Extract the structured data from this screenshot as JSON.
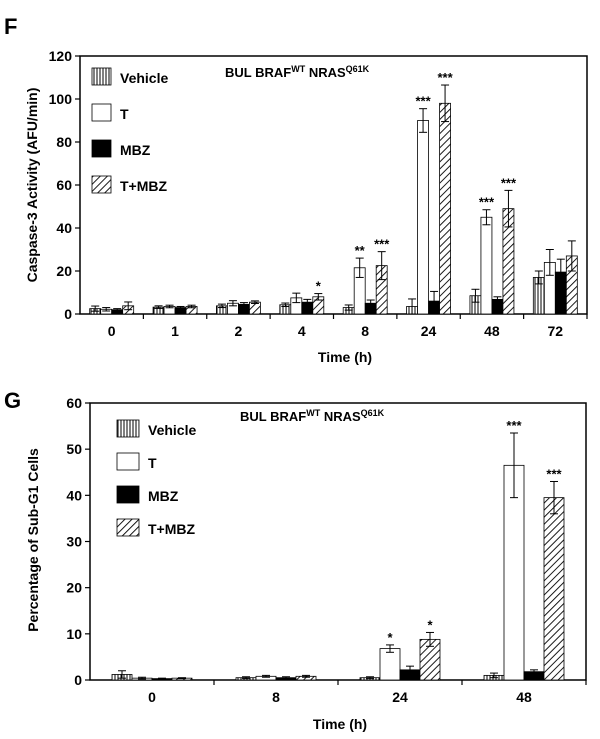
{
  "chart_data": [
    {
      "type": "bar",
      "panel": "F",
      "title": "BUL   BRAF",
      "title_sup1": "WT",
      "title_mid": " NRAS",
      "title_sup2": "Q61K",
      "xlabel": "Time (h)",
      "ylabel": "Caspase-3 Activity (AFU/min)",
      "ylim": [
        0,
        120
      ],
      "yticks": [
        "0",
        "20",
        "40",
        "60",
        "80",
        "100",
        "120"
      ],
      "categories": [
        "0",
        "1",
        "2",
        "4",
        "8",
        "24",
        "48",
        "72"
      ],
      "series": [
        {
          "name": "Vehicle",
          "pattern": "vertical",
          "values": [
            2.5,
            3.2,
            3.8,
            4.3,
            3.0,
            3.5,
            8.5,
            17
          ],
          "errors": [
            1.2,
            0.6,
            0.8,
            0.8,
            1.2,
            3.5,
            3.0,
            3.0
          ],
          "sig": [
            "",
            "",
            "",
            "",
            "",
            "",
            "",
            ""
          ]
        },
        {
          "name": "T",
          "pattern": "white",
          "values": [
            2.2,
            3.5,
            5.0,
            7.5,
            21.5,
            90,
            45,
            24
          ],
          "errors": [
            0.8,
            0.6,
            1.2,
            2.2,
            4.5,
            5.5,
            3.5,
            6.0
          ],
          "sig": [
            "",
            "",
            "",
            "",
            "**",
            "***",
            "***",
            ""
          ]
        },
        {
          "name": "MBZ",
          "pattern": "black",
          "values": [
            2.0,
            3.0,
            4.5,
            5.5,
            5.0,
            6.0,
            6.8,
            19.5
          ],
          "errors": [
            0.5,
            0.5,
            0.8,
            1.3,
            1.5,
            4.5,
            1.2,
            6.0
          ],
          "sig": [
            "",
            "",
            "",
            "",
            "",
            "",
            "",
            ""
          ]
        },
        {
          "name": "T+MBZ",
          "pattern": "diagonal",
          "values": [
            3.8,
            3.5,
            5.5,
            8.0,
            22.5,
            98,
            49,
            27
          ],
          "errors": [
            1.8,
            0.6,
            0.6,
            1.5,
            6.5,
            8.5,
            8.5,
            7.0
          ],
          "sig": [
            "",
            "",
            "",
            "*",
            "***",
            "***",
            "***",
            ""
          ]
        }
      ]
    },
    {
      "type": "bar",
      "panel": "G",
      "title": "BUL   BRAF",
      "title_sup1": "WT",
      "title_mid": " NRAS",
      "title_sup2": "Q61K",
      "xlabel": "Time (h)",
      "ylabel": "Percentage of Sub-G1 Cells",
      "ylim": [
        0,
        60
      ],
      "yticks": [
        "0",
        "10",
        "20",
        "30",
        "40",
        "50",
        "60"
      ],
      "categories": [
        "0",
        "8",
        "24",
        "48"
      ],
      "series": [
        {
          "name": "Vehicle",
          "pattern": "vertical",
          "values": [
            1.2,
            0.5,
            0.5,
            1.0
          ],
          "errors": [
            0.8,
            0.2,
            0.2,
            0.5
          ],
          "sig": [
            "",
            "",
            "",
            ""
          ]
        },
        {
          "name": "T",
          "pattern": "white",
          "values": [
            0.4,
            0.8,
            6.8,
            46.5
          ],
          "errors": [
            0.2,
            0.2,
            0.8,
            7.0
          ],
          "sig": [
            "",
            "",
            "*",
            "***"
          ]
        },
        {
          "name": "MBZ",
          "pattern": "black",
          "values": [
            0.3,
            0.5,
            2.2,
            1.8
          ],
          "errors": [
            0.1,
            0.2,
            0.8,
            0.4
          ],
          "sig": [
            "",
            "",
            "",
            ""
          ]
        },
        {
          "name": "T+MBZ",
          "pattern": "diagonal",
          "values": [
            0.4,
            0.8,
            8.8,
            39.5
          ],
          "errors": [
            0.1,
            0.2,
            1.5,
            3.5
          ],
          "sig": [
            "",
            "",
            "*",
            "***"
          ]
        }
      ]
    }
  ]
}
